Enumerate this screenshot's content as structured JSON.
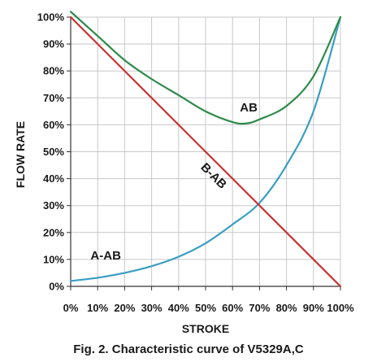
{
  "chart_data": {
    "type": "line",
    "title": "",
    "xlabel": "STROKE",
    "ylabel": "FLOW RATE",
    "x_ticks": [
      "0%",
      "10%",
      "20%",
      "30%",
      "40%",
      "50%",
      "60%",
      "70%",
      "80%",
      "90%",
      "100%"
    ],
    "y_ticks": [
      "0%",
      "10%",
      "20%",
      "30%",
      "40%",
      "50%",
      "60%",
      "70%",
      "80%",
      "90%",
      "100%"
    ],
    "xlim": [
      0,
      100
    ],
    "ylim": [
      0,
      100
    ],
    "grid": true,
    "series": [
      {
        "name": "A-AB",
        "color": "#3a9ec4",
        "x": [
          0,
          10,
          20,
          30,
          40,
          50,
          60,
          70,
          80,
          90,
          100
        ],
        "y": [
          2,
          3.2,
          5,
          7.5,
          11,
          16,
          23,
          31,
          45,
          65,
          100
        ]
      },
      {
        "name": "B-AB",
        "color": "#c83232",
        "x": [
          0,
          100
        ],
        "y": [
          100,
          0
        ]
      },
      {
        "name": "AB",
        "color": "#2e8b4a",
        "x": [
          0,
          10,
          20,
          30,
          40,
          50,
          60,
          65,
          70,
          80,
          90,
          100
        ],
        "y": [
          102,
          93,
          84,
          77,
          71,
          65,
          61,
          60.5,
          62,
          67,
          78,
          100
        ]
      }
    ],
    "annotations": [
      {
        "text": "AB",
        "x": 66,
        "y": 65
      },
      {
        "text": "B-AB",
        "x": 52,
        "y": 40
      },
      {
        "text": "A-AB",
        "x": 13,
        "y": 10
      }
    ]
  },
  "caption": "Fig. 2. Characteristic curve of V5329A,C"
}
